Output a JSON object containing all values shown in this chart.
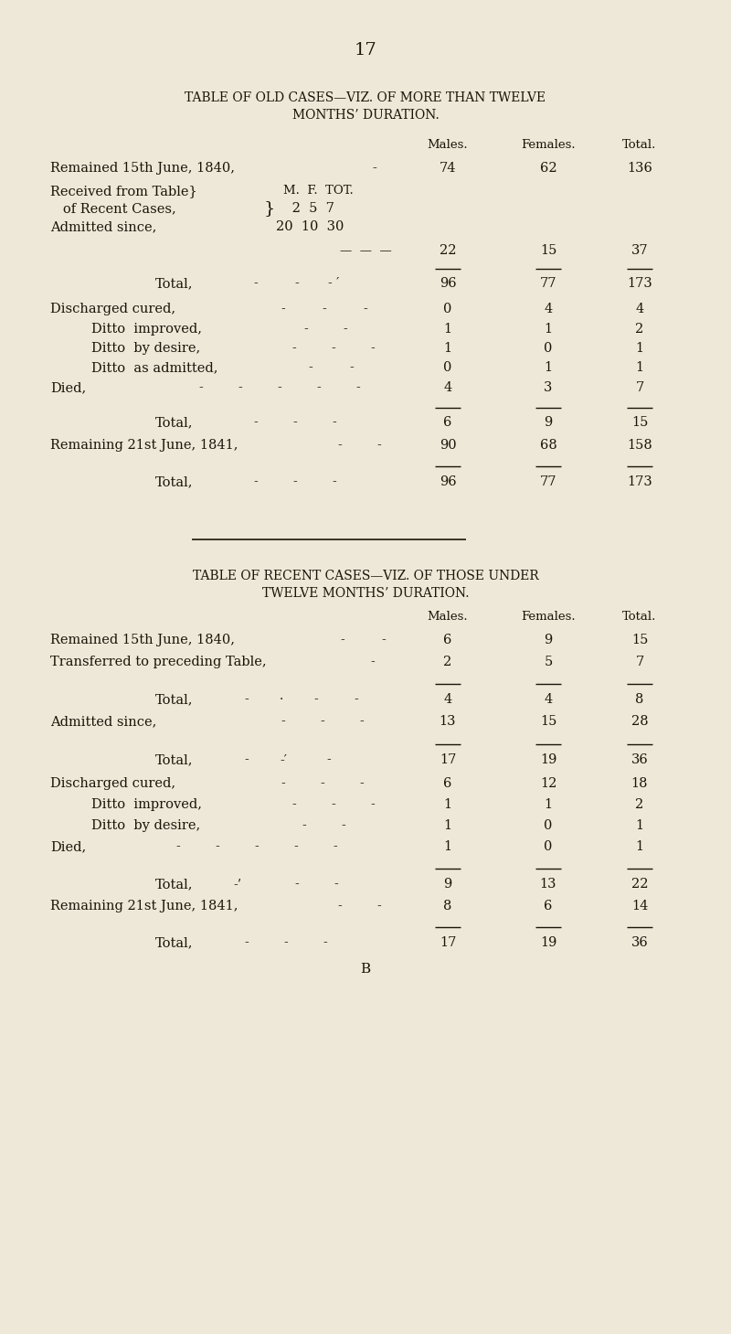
{
  "bg_color": "#ede8d8",
  "text_color": "#1a1508",
  "page_number": "17",
  "table1_title1": "TABLE OF OLD CASES—VIZ. OF MORE THAN TWELVE",
  "table1_title2": "MONTHS’ DURATION.",
  "table2_title1": "TABLE OF RECENT CASES—VIZ. OF THOSE UNDER",
  "table2_title2": "TWELVE MONTHS’ DURATION.",
  "fig_width": 8.0,
  "fig_height": 14.59
}
